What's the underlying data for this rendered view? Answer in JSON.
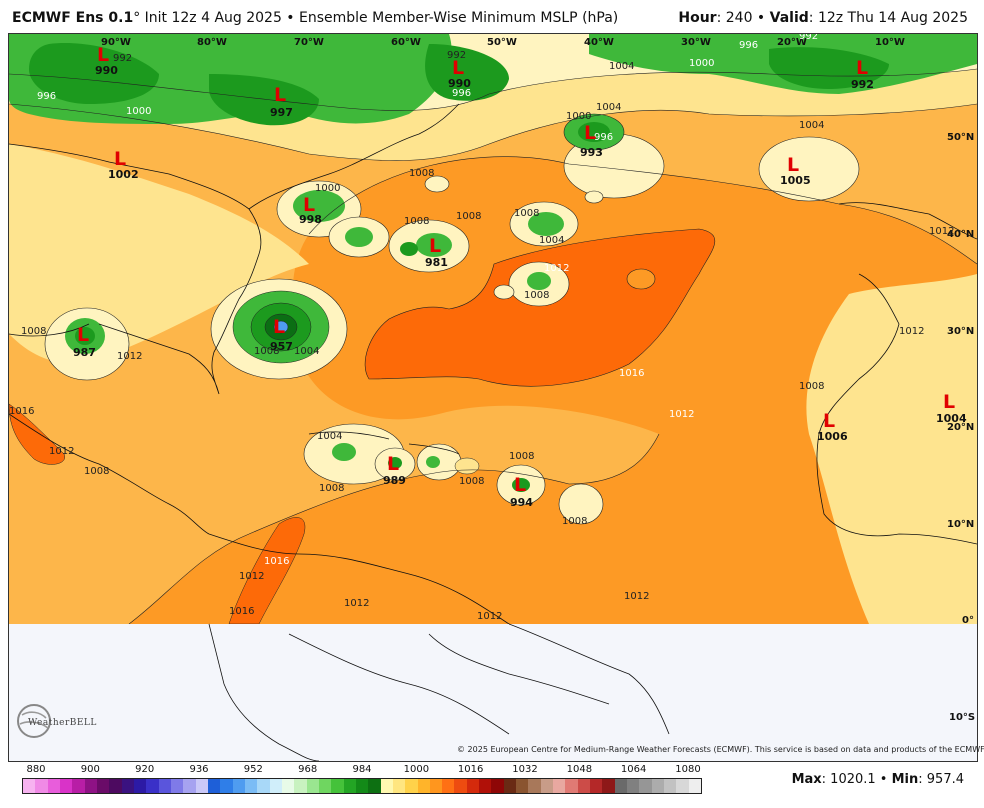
{
  "header": {
    "model": "ECMWF Ens 0.1",
    "degree": "°",
    "init": " Init 12z 4 Aug 2025 • Ensemble Member-Wise Minimum MSLP (hPa)",
    "hour_label": "Hour",
    "hour_value": ": 240 • ",
    "valid_label": "Valid",
    "valid_value": ": 12z Thu 14 Aug 2025"
  },
  "longitudes": [
    "90°W",
    "80°W",
    "70°W",
    "60°W",
    "50°W",
    "40°W",
    "30°W",
    "20°W",
    "10°W"
  ],
  "latitudes": [
    "50°N",
    "40°N",
    "30°N",
    "20°N",
    "10°N",
    "0°",
    "10°S"
  ],
  "lows": [
    {
      "value": "990"
    },
    {
      "value": "997"
    },
    {
      "value": "1002"
    },
    {
      "value": "990"
    },
    {
      "value": "993"
    },
    {
      "value": "992"
    },
    {
      "value": "1005"
    },
    {
      "value": "998"
    },
    {
      "value": "981"
    },
    {
      "value": "987"
    },
    {
      "value": "957"
    },
    {
      "value": "989"
    },
    {
      "value": "994"
    },
    {
      "value": "1006"
    },
    {
      "value": "1004"
    }
  ],
  "isobars": [
    "992",
    "996",
    "1000",
    "1004",
    "1008",
    "1012",
    "1016"
  ],
  "copyright": "© 2025 European Centre for Medium-Range Weather Forecasts (ECMWF). This service is based on data and products of the ECMWF.",
  "logo_text": "WeatherBELL",
  "colorbar": {
    "labels": [
      "880",
      "900",
      "920",
      "936",
      "952",
      "968",
      "984",
      "1000",
      "1016",
      "1032",
      "1048",
      "1064",
      "1080"
    ],
    "colors": [
      "#f7b3f0",
      "#f08ae6",
      "#e85ddb",
      "#d933c8",
      "#b81ea6",
      "#8e1285",
      "#6a0b68",
      "#4d0a60",
      "#3a1280",
      "#2c1aa5",
      "#3a30c8",
      "#5a55dc",
      "#7f7ae8",
      "#a6a2f0",
      "#cac8f8",
      "#1e5fd8",
      "#2f7ee8",
      "#4f9cf0",
      "#7bbcf5",
      "#a8d8f8",
      "#d0eefa",
      "#e8fbe8",
      "#c8f2c0",
      "#9ae690",
      "#6fd660",
      "#45c23a",
      "#23a524",
      "#138a18",
      "#0d7012",
      "#fff8b0",
      "#ffe680",
      "#ffd24a",
      "#ffb42a",
      "#ff961e",
      "#ff7014",
      "#ee4c10",
      "#d42a0c",
      "#b01008",
      "#8e0606",
      "#6a2a14",
      "#8a5430",
      "#a8785a",
      "#c89c88",
      "#e8a8a0",
      "#e07a74",
      "#cc4c48",
      "#b42828",
      "#8e1818",
      "#6a6a6a",
      "#808080",
      "#969696",
      "#acacac",
      "#c2c2c2",
      "#d8d8d8",
      "#eeeeee"
    ]
  },
  "stats": {
    "max_label": "Max",
    "max_value": ": 1020.1 • ",
    "min_label": "Min",
    "min_value": ": 957.4"
  },
  "colors": {
    "base_1008": "#fdb64a",
    "band_1012": "#fd9a25",
    "band_1016": "#fd6a08",
    "band_1004": "#fee48f",
    "band_1000": "#fff4c0",
    "green_996": "#3fb83a",
    "green_992": "#1c9a1e",
    "green_dark": "#0b6e14",
    "south_fill": "#f4f6fb"
  }
}
